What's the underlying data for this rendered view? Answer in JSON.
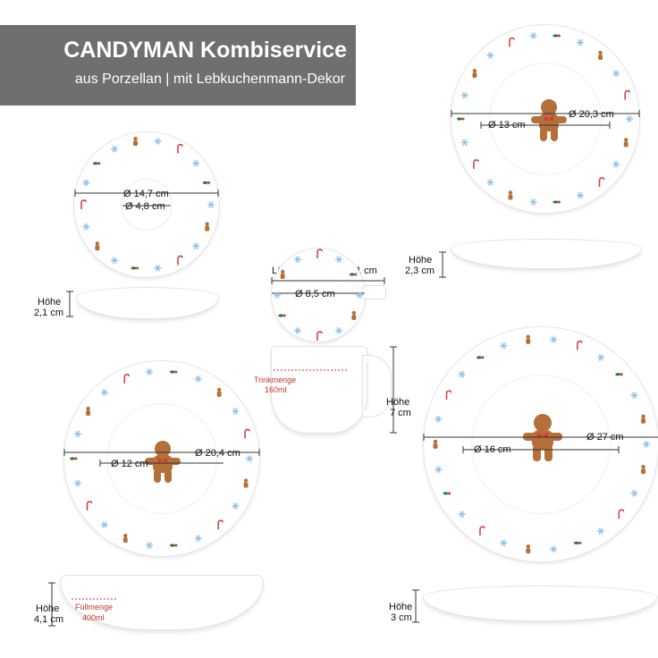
{
  "banner": {
    "title": "CANDYMAN Kombiservice",
    "subtitle": "aus Porzellan | mit Lebkuchenmann-Dekor"
  },
  "saucer": {
    "diameter_outer": "Ø 14,7 cm",
    "diameter_inner": "Ø 4,8 cm",
    "height_label": "Höhe",
    "height_value": "2,1 cm"
  },
  "dessert_plate": {
    "diameter_outer": "Ø 20,3 cm",
    "diameter_inner": "Ø 13 cm",
    "height_label": "Höhe",
    "height_value": "2,3 cm"
  },
  "cup": {
    "length_with_handle": "Länge mit Henkel 11 cm",
    "diameter": "Ø 8,5 cm",
    "capacity_label": "Trinkmenge",
    "capacity_value": "160ml",
    "height_label": "Höhe",
    "height_value": "7 cm"
  },
  "soup_plate": {
    "diameter_outer": "Ø 20,4 cm",
    "diameter_inner": "Ø 12 cm",
    "height_label": "Höhe",
    "height_value": "4,1 cm",
    "capacity_label": "Füllmenge",
    "capacity_value": "400ml"
  },
  "dinner_plate": {
    "diameter_outer": "Ø 27 cm",
    "diameter_inner": "Ø 16 cm",
    "height_label": "Höhe",
    "height_value": "3 cm"
  },
  "colors": {
    "banner_bg": "#6f6f6f",
    "annotation_red": "#c0392b",
    "snowflake": "#8ec3e6",
    "gingerbread": "#b5703a",
    "holly": "#2f7a34",
    "candy_red": "#d23a3a"
  }
}
